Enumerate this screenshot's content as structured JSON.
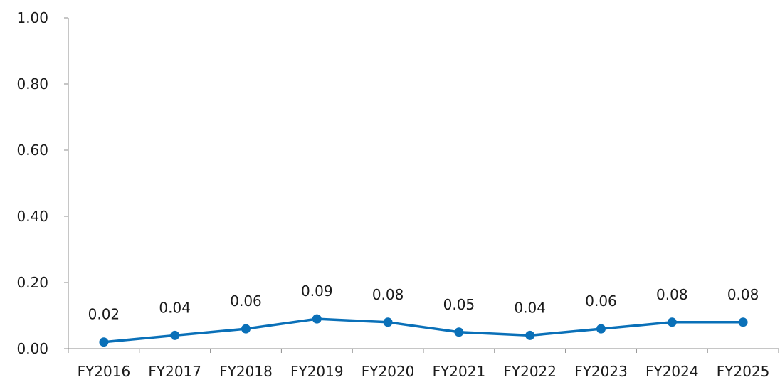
{
  "chart_data": {
    "type": "line",
    "title": "",
    "xlabel": "",
    "ylabel": "",
    "categories": [
      "FY2016",
      "FY2017",
      "FY2018",
      "FY2019",
      "FY2020",
      "FY2021",
      "FY2022",
      "FY2023",
      "FY2024",
      "FY2025"
    ],
    "series": [
      {
        "values": [
          0.02,
          0.04,
          0.06,
          0.09,
          0.08,
          0.05,
          0.04,
          0.06,
          0.08,
          0.08
        ],
        "data_labels": [
          "0.02",
          "0.04",
          "0.06",
          "0.09",
          "0.08",
          "0.05",
          "0.04",
          "0.06",
          "0.08",
          "0.08"
        ],
        "color": "#0a70b8"
      }
    ],
    "y_ticks": [
      "0.00",
      "0.20",
      "0.40",
      "0.60",
      "0.80",
      "1.00"
    ],
    "y_tick_values": [
      0,
      0.2,
      0.4,
      0.6,
      0.8,
      1.0
    ],
    "ylim": [
      0,
      1.0
    ],
    "grid": false,
    "legend": "none",
    "axis_color": "#8c8c8c"
  }
}
